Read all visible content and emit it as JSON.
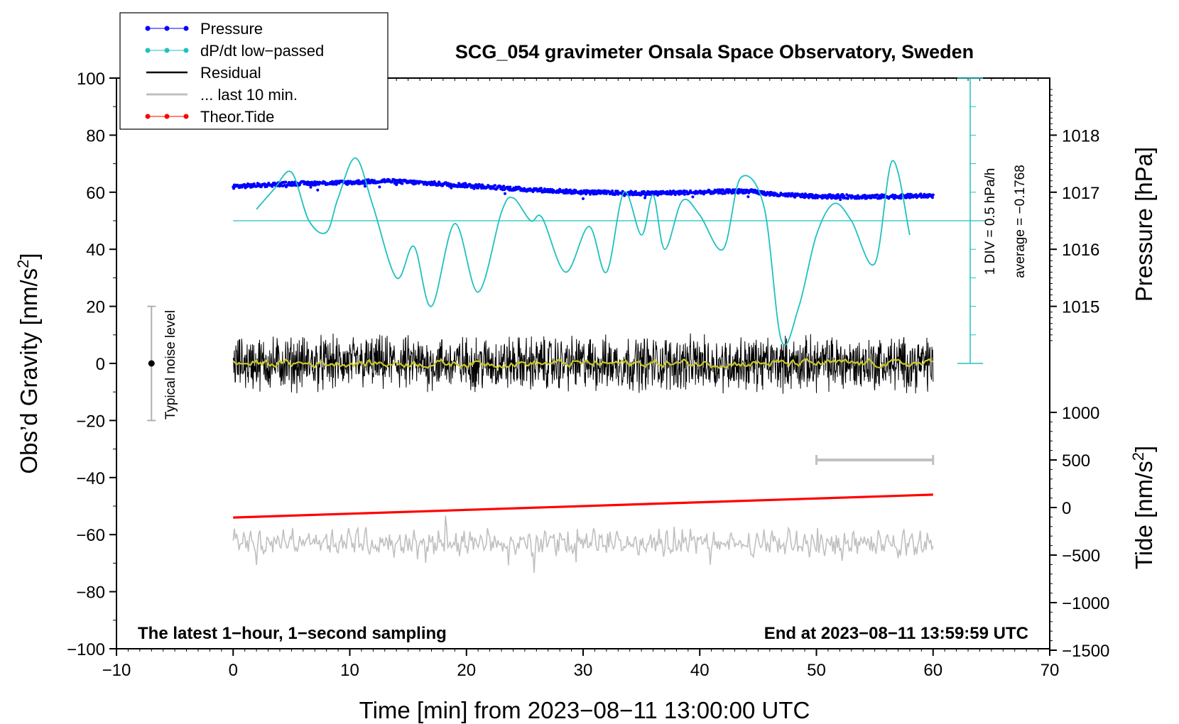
{
  "chart_data": {
    "type": "line",
    "title": "SCG_054 gravimeter Onsala Space Observatory, Sweden",
    "xlabel": "Time [min] from 2023−08−11 13:00:00 UTC",
    "ylabel_left": "Obs’d Gravity [nm/s",
    "ylabel_left_sup": "2",
    "ylabel_left_end": "]",
    "ylabel_right_pressure": "Pressure [hPa]",
    "ylabel_right_tide": "Tide [nm/s",
    "ylabel_right_tide_sup": "2",
    "ylabel_right_tide_end": "]",
    "xlim": [
      -10,
      70
    ],
    "ylim_left": [
      -100,
      100
    ],
    "x_ticks": [
      "−10",
      "0",
      "10",
      "20",
      "30",
      "40",
      "50",
      "60",
      "70"
    ],
    "y_left_ticks": [
      "100",
      "80",
      "60",
      "40",
      "20",
      "0",
      "−20",
      "−40",
      "−60",
      "−80",
      "−100"
    ],
    "pressure_ticks": [
      "1018",
      "1017",
      "1016",
      "1015"
    ],
    "pressure_tick_values": [
      1018,
      1017,
      1016,
      1015
    ],
    "tide_ticks": [
      "1000",
      "500",
      "0",
      "−500",
      "−1000",
      "−1500"
    ],
    "tide_tick_values": [
      1000,
      500,
      0,
      -500,
      -1000,
      -1500
    ],
    "legend": [
      "Pressure",
      "dP/dt low−passed",
      "Residual",
      "... last 10 min.",
      "Theor.Tide"
    ],
    "noise_label": "Typical noise level",
    "noise_range": [
      -20,
      20
    ],
    "dpdt_scale_text": "1 DIV = 0.5 hPa/h",
    "dpdt_average_text": "average = −0.1768",
    "dpdt_baseline_left_units": 50,
    "bottom_left_note": "The latest 1−hour, 1−second sampling",
    "bottom_right_note": "End at 2023−08−11 13:59:59 UTC",
    "last10_range_min": [
      50,
      60
    ],
    "last10_marker_tide_value": 500,
    "series": [
      {
        "name": "Pressure",
        "color": "#0000ff",
        "x": [
          0,
          5,
          10,
          13,
          20,
          25,
          30,
          35,
          40,
          44,
          47,
          50,
          55,
          60
        ],
        "y": [
          1017.1,
          1017.15,
          1017.17,
          1017.2,
          1017.12,
          1017.05,
          1017.0,
          1016.98,
          1017.0,
          1017.02,
          1016.95,
          1016.93,
          1016.92,
          1016.94
        ]
      },
      {
        "name": "dP/dt low−passed",
        "color": "#20c0c0",
        "x": [
          2,
          3.5,
          5,
          6.5,
          8,
          9,
          10.5,
          12,
          14,
          15.5,
          17,
          19,
          21,
          23,
          24,
          25.5,
          26.5,
          28.5,
          30.5,
          32,
          33.5,
          35,
          36,
          37,
          38.5,
          40,
          42,
          43.5,
          45.5,
          47,
          48.5,
          50,
          51.5,
          53,
          55,
          56.5,
          58
        ],
        "y": [
          54,
          61,
          67,
          50,
          46,
          58,
          72,
          55,
          30,
          41,
          20,
          49,
          25,
          53,
          58,
          50,
          51,
          32,
          48,
          32,
          60,
          45,
          59,
          40,
          57,
          52,
          40,
          65,
          55,
          8,
          20,
          45,
          56,
          50,
          35,
          71,
          45
        ]
      },
      {
        "name": "Residual",
        "color": "#000000",
        "x": [
          0,
          60
        ],
        "y": [
          0,
          0
        ]
      },
      {
        "name": "... last 10 min.",
        "color": "#c0c0c0",
        "x": [
          0,
          60
        ],
        "y": [
          -63,
          -63
        ]
      },
      {
        "name": "Theor.Tide",
        "color": "#ff0000",
        "x": [
          0,
          60
        ],
        "y": [
          -54,
          -46
        ]
      }
    ],
    "colors": {
      "pressure": "#0000ff",
      "dpdt": "#20c0c0",
      "residual": "#000000",
      "smooth": "#c8c828",
      "last10": "#c0c0c0",
      "tide": "#ff0000"
    }
  }
}
